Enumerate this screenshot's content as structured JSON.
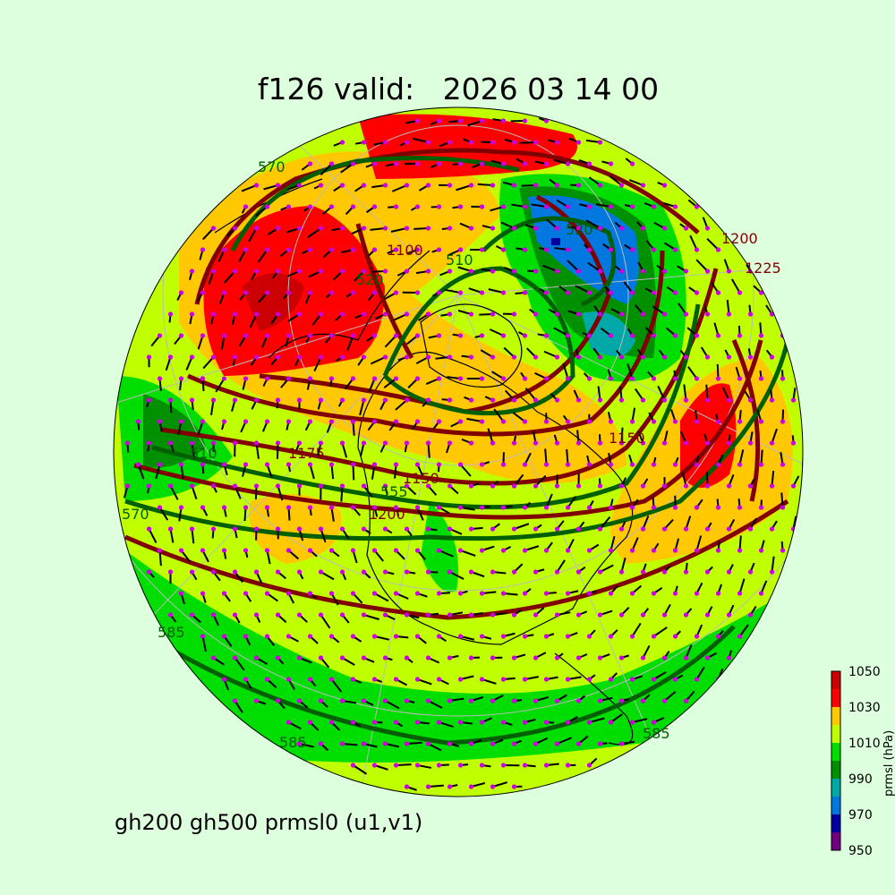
{
  "title": "f126 valid:   2026 03 14 00",
  "footer": "gh200 gh500 prmsl0 (u1,v1)",
  "colorbar": {
    "label": "prmsl (hPa)",
    "ticks": [
      "1050",
      "1030",
      "1010",
      "990",
      "970",
      "950"
    ],
    "bins": [
      950,
      960,
      970,
      980,
      990,
      1000,
      1010,
      1020,
      1030,
      1040,
      1050
    ],
    "colors": [
      "#700080",
      "#0000a0",
      "#0078e0",
      "#00a8a8",
      "#009000",
      "#00dd00",
      "#c0ff00",
      "#ffc800",
      "#ff0000",
      "#cc0000"
    ]
  },
  "contour_labels": {
    "gh500": [
      "570",
      "510",
      "520",
      "520",
      "555",
      "585",
      "585",
      "585",
      "570",
      "510"
    ],
    "gh200": [
      "1100",
      "1150",
      "1175",
      "1200",
      "1200",
      "1225",
      "1150"
    ]
  },
  "contour_colors": {
    "gh200": "#800000",
    "gh500": "#006000",
    "wind_dot": "#cc00dd",
    "coast": "#000000"
  }
}
